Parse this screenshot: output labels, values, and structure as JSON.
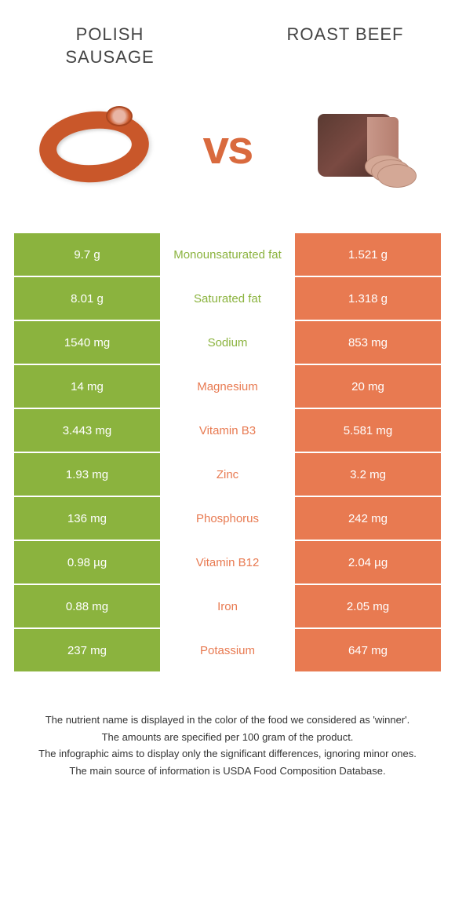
{
  "foods": {
    "left": {
      "name": "Polish sausage",
      "color": "#8bb33e"
    },
    "right": {
      "name": "Roast beef",
      "color": "#e87a51"
    }
  },
  "vs_label": "vs",
  "rows": [
    {
      "nutrient": "Monounsaturated fat",
      "left": "9.7 g",
      "right": "1.521 g",
      "winner": "left"
    },
    {
      "nutrient": "Saturated fat",
      "left": "8.01 g",
      "right": "1.318 g",
      "winner": "left"
    },
    {
      "nutrient": "Sodium",
      "left": "1540 mg",
      "right": "853 mg",
      "winner": "left"
    },
    {
      "nutrient": "Magnesium",
      "left": "14 mg",
      "right": "20 mg",
      "winner": "right"
    },
    {
      "nutrient": "Vitamin B3",
      "left": "3.443 mg",
      "right": "5.581 mg",
      "winner": "right"
    },
    {
      "nutrient": "Zinc",
      "left": "1.93 mg",
      "right": "3.2 mg",
      "winner": "right"
    },
    {
      "nutrient": "Phosphorus",
      "left": "136 mg",
      "right": "242 mg",
      "winner": "right"
    },
    {
      "nutrient": "Vitamin B12",
      "left": "0.98 µg",
      "right": "2.04 µg",
      "winner": "right"
    },
    {
      "nutrient": "Iron",
      "left": "0.88 mg",
      "right": "2.05 mg",
      "winner": "right"
    },
    {
      "nutrient": "Potassium",
      "left": "237 mg",
      "right": "647 mg",
      "winner": "right"
    }
  ],
  "footer": {
    "line1": "The nutrient name is displayed in the color of the food we considered as 'winner'.",
    "line2": "The amounts are specified per 100 gram of the product.",
    "line3": "The infographic aims to display only the significant differences, ignoring minor ones.",
    "line4": "The main source of information is USDA Food Composition Database."
  }
}
